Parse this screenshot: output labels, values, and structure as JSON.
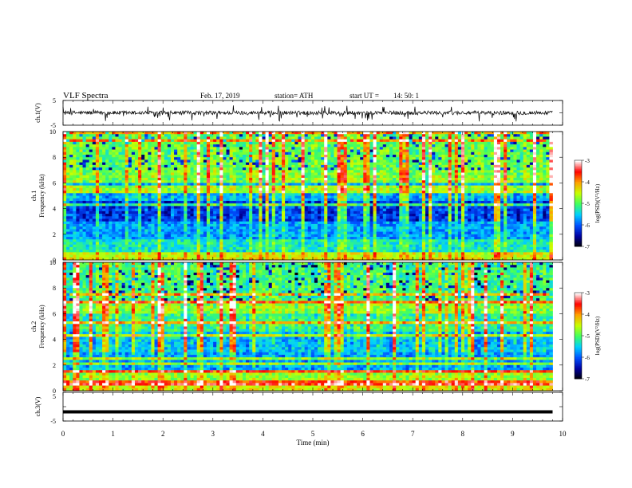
{
  "header": {
    "title": "VLF  Spectra",
    "date": "Feb. 17, 2019",
    "station": "station= ATH",
    "start_label": "start  UT  =",
    "start_time": "14: 50: 1"
  },
  "chart_data": [
    {
      "type": "line",
      "name": "ch1-waveform",
      "ylabel": "ch.1(V)",
      "ylim": [
        -5,
        5
      ],
      "yticks": [
        "5",
        "-5"
      ],
      "baseline": 0,
      "spike_values": [
        -3.5,
        3.0,
        -2.5
      ]
    },
    {
      "type": "heatmap",
      "name": "ch1-spectrogram",
      "ylabel_line1": "ch.1",
      "ylabel_line2": "Frequency (kHz)",
      "ylim": [
        0,
        10
      ],
      "yticks": [
        "0",
        "2",
        "4",
        "6",
        "8",
        "10"
      ],
      "colorbar": {
        "label": "log(PSD)(V²/Hz)",
        "range": [
          -7,
          -3
        ],
        "ticks": [
          "-3",
          "-4",
          "-5",
          "-6",
          "-7"
        ],
        "colors": [
          "#000000",
          "#0000a0",
          "#0050ff",
          "#00d0ff",
          "#40ff60",
          "#c8ff00",
          "#ffa000",
          "#ff0000",
          "#ffffff"
        ]
      }
    },
    {
      "type": "heatmap",
      "name": "ch2-spectrogram",
      "ylabel_line1": "ch.2",
      "ylabel_line2": "Frequency (kHz)",
      "ylim": [
        0,
        10
      ],
      "yticks": [
        "0",
        "2",
        "4",
        "6",
        "8",
        "10"
      ],
      "colorbar": {
        "label": "log(PSD)(V²/Hz)",
        "range": [
          -7,
          -3
        ],
        "ticks": [
          "-3",
          "-4",
          "-5",
          "-6",
          "-7"
        ],
        "colors": [
          "#000000",
          "#0000a0",
          "#0050ff",
          "#00d0ff",
          "#40ff60",
          "#c8ff00",
          "#ffa000",
          "#ff0000",
          "#ffffff"
        ]
      }
    },
    {
      "type": "line",
      "name": "ch3-waveform",
      "ylabel": "ch.3(V)",
      "ylim": [
        -5,
        5
      ],
      "yticks": [
        "5",
        "-5"
      ],
      "level": -1.8
    }
  ],
  "x_axis": {
    "label": "Time  (min)",
    "range": [
      0,
      10
    ],
    "ticks": [
      "0",
      "1",
      "2",
      "3",
      "4",
      "5",
      "6",
      "7",
      "8",
      "9",
      "10"
    ],
    "data_end": 9.8
  }
}
